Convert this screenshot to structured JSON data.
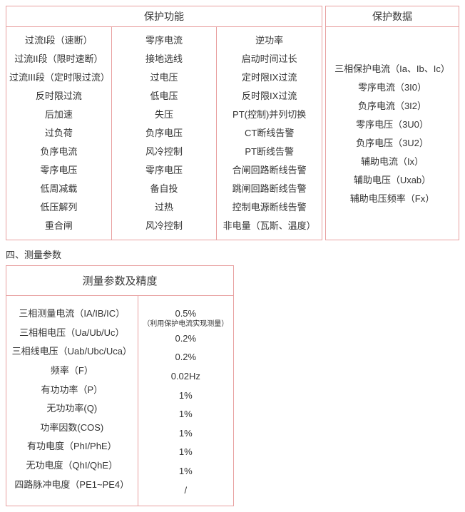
{
  "protect_func": {
    "header": "保护功能",
    "col1": [
      "过流I段（速断）",
      "过流II段（限时速断）",
      "过流III段（定时限过流）",
      "反时限过流",
      "后加速",
      "过负荷",
      "负序电流",
      "零序电压",
      "低周减载",
      "低压解列",
      "重合闸"
    ],
    "col2": [
      "零序电流",
      "接地选线",
      "过电压",
      "低电压",
      "失压",
      "负序电压",
      "风冷控制",
      "零序电压",
      "备自投",
      "过热",
      "风冷控制"
    ],
    "col3": [
      "逆功率",
      "启动时间过长",
      "定时限IX过流",
      "反时限IX过流",
      "PT(控制)并列切换",
      "CT断线告警",
      "PT断线告警",
      "合闸回路断线告警",
      "跳闸回路断线告警",
      "控制电源断线告警",
      "非电量（瓦斯、温度）"
    ]
  },
  "protect_data": {
    "header": "保护数据",
    "items": [
      "三相保护电流（Ia、Ib、Ic）",
      "零序电流（3I0）",
      "负序电流（3I2）",
      "零序电压（3U0）",
      "负序电压（3U2）",
      "辅助电流（Ix）",
      "辅助电压（Uxab）",
      "辅助电压频率（Fx）"
    ]
  },
  "section_label": "四、测量参数",
  "measure": {
    "header": "测量参数及精度",
    "rows": [
      {
        "label": "三相测量电流（IA/IB/IC）",
        "value": "0.5%",
        "note": "（利用保护电流实现测量）"
      },
      {
        "label": "三相相电压（Ua/Ub/Uc）",
        "value": "0.2%"
      },
      {
        "label": "三相线电压（Uab/Ubc/Uca）",
        "value": "0.2%"
      },
      {
        "label": "频率（F）",
        "value": "0.02Hz"
      },
      {
        "label": "有功功率（P）",
        "value": "1%"
      },
      {
        "label": "无功功率(Q)",
        "value": "1%"
      },
      {
        "label": "功率因数(COS)",
        "value": "1%"
      },
      {
        "label": "有功电度（PhI/PhE）",
        "value": "1%"
      },
      {
        "label": "无功电度（QhI/QhE）",
        "value": "1%"
      },
      {
        "label": "四路脉冲电度（PE1~PE4）",
        "value": "/"
      }
    ]
  },
  "colors": {
    "border": "#e8a0a0",
    "text": "#333333",
    "background": "#ffffff"
  }
}
